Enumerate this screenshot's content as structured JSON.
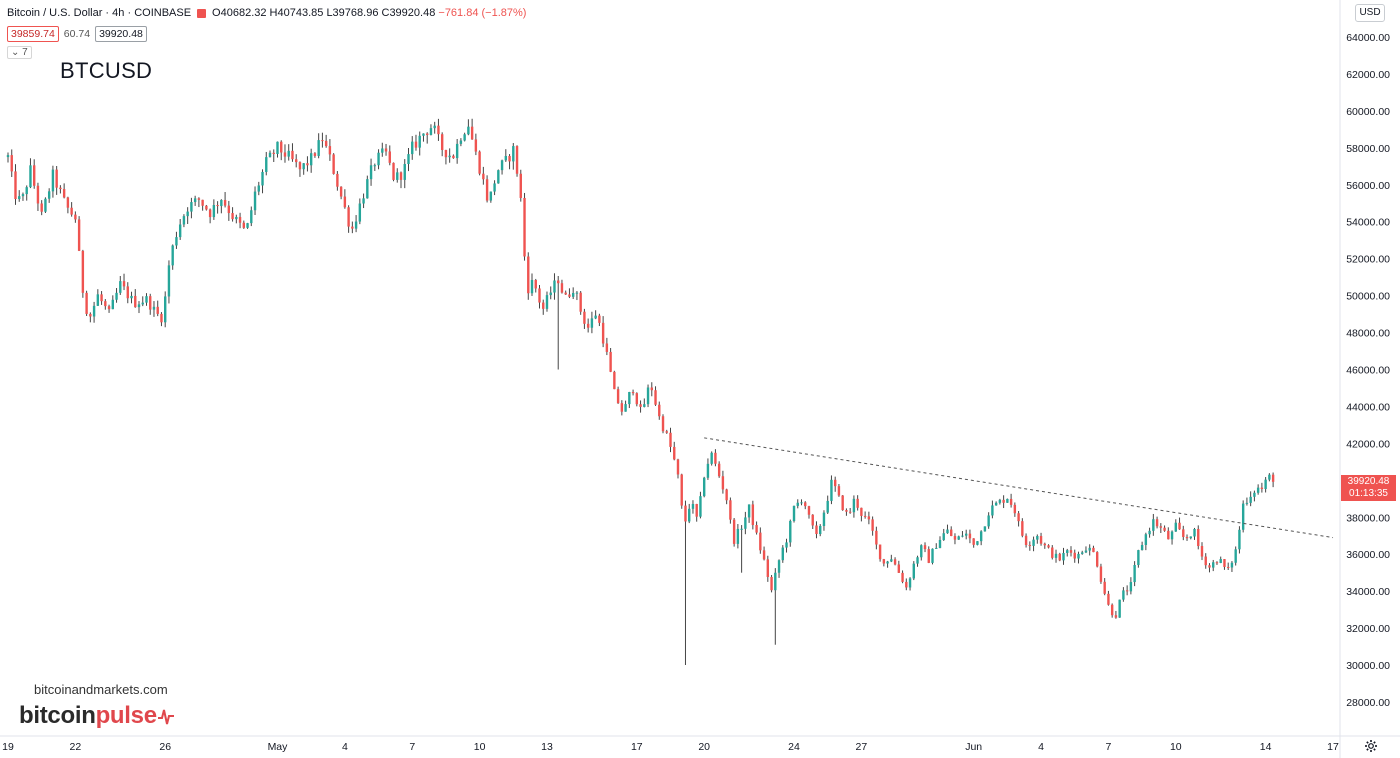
{
  "header": {
    "symbol": "Bitcoin / U.S. Dollar",
    "interval": "4h",
    "exchange": "COINBASE",
    "flag_color": "#ef5350",
    "open": "O40682.32",
    "high": "H40743.85",
    "low": "L39768.96",
    "close": "C39920.48",
    "change": "−761.84 (−1.87%)"
  },
  "quote": {
    "bid": "39859.74",
    "spread": "60.74",
    "ask": "39920.48",
    "indicators_toggle": "⌄ 7"
  },
  "watermark": "BTCUSD",
  "branding": {
    "site": "bitcoinandmarkets.com",
    "logo_part1": "bitcoin",
    "logo_part2": "pulse",
    "logo_icon": "pulse-icon"
  },
  "toolbar": {
    "currency": "USD",
    "settings_icon": "gear-icon"
  },
  "last_price": {
    "value": "39920.48",
    "countdown": "01:13:35",
    "color": "#ef5350"
  },
  "colors": {
    "up": "#26a69a",
    "down": "#ef5350",
    "wick": "#444444",
    "trendline": "#555555"
  },
  "chart_data": {
    "type": "candlestick",
    "title": "BTCUSD",
    "y_axis": {
      "min": 26500,
      "max": 65200,
      "ticks": [
        "28000.00",
        "30000.00",
        "32000.00",
        "34000.00",
        "36000.00",
        "38000.00",
        "40000.00",
        "42000.00",
        "44000.00",
        "46000.00",
        "48000.00",
        "50000.00",
        "52000.00",
        "54000.00",
        "56000.00",
        "58000.00",
        "60000.00",
        "62000.00",
        "64000.00"
      ],
      "position": "right"
    },
    "x_axis": {
      "first_day": 19,
      "last_day": 60.5,
      "ticks": [
        {
          "day": 19,
          "label": "19"
        },
        {
          "day": 22,
          "label": "22"
        },
        {
          "day": 26,
          "label": "26"
        },
        {
          "day": 31,
          "label": "May"
        },
        {
          "day": 34,
          "label": "4"
        },
        {
          "day": 37,
          "label": "7"
        },
        {
          "day": 40,
          "label": "10"
        },
        {
          "day": 43,
          "label": "13"
        },
        {
          "day": 47,
          "label": "17"
        },
        {
          "day": 50,
          "label": "20"
        },
        {
          "day": 54,
          "label": "24"
        },
        {
          "day": 57,
          "label": "27"
        },
        {
          "day": 62,
          "label": "Jun"
        },
        {
          "day": 65,
          "label": "4"
        },
        {
          "day": 68,
          "label": "7"
        },
        {
          "day": 71,
          "label": "10"
        },
        {
          "day": 75,
          "label": "14"
        },
        {
          "day": 78,
          "label": "17"
        }
      ]
    },
    "trendline": {
      "from": {
        "day": 50,
        "price": 42300
      },
      "to": {
        "day": 78,
        "price": 36900
      },
      "style": "dashed"
    },
    "grid": false,
    "anchors": [
      [
        19.0,
        57500
      ],
      [
        19.3,
        55500
      ],
      [
        19.6,
        55000
      ],
      [
        20.0,
        56800
      ],
      [
        20.5,
        54300
      ],
      [
        21.0,
        56500
      ],
      [
        21.6,
        54800
      ],
      [
        22.0,
        54200
      ],
      [
        22.3,
        50500
      ],
      [
        22.6,
        48700
      ],
      [
        23.0,
        50000
      ],
      [
        23.5,
        49000
      ],
      [
        24.0,
        50600
      ],
      [
        24.6,
        49600
      ],
      [
        25.2,
        49800
      ],
      [
        25.6,
        49000
      ],
      [
        25.9,
        48800
      ],
      [
        26.2,
        52000
      ],
      [
        26.6,
        53800
      ],
      [
        27.0,
        54800
      ],
      [
        27.5,
        55200
      ],
      [
        28.0,
        54500
      ],
      [
        28.5,
        55300
      ],
      [
        29.0,
        54300
      ],
      [
        29.6,
        53400
      ],
      [
        30.0,
        55500
      ],
      [
        30.5,
        57200
      ],
      [
        31.0,
        58000
      ],
      [
        31.5,
        57500
      ],
      [
        32.0,
        56800
      ],
      [
        32.5,
        57400
      ],
      [
        33.0,
        58500
      ],
      [
        33.4,
        57200
      ],
      [
        33.8,
        55500
      ],
      [
        34.3,
        53500
      ],
      [
        34.8,
        55400
      ],
      [
        35.3,
        57200
      ],
      [
        35.8,
        57800
      ],
      [
        36.2,
        56300
      ],
      [
        36.6,
        56700
      ],
      [
        37.0,
        58000
      ],
      [
        37.5,
        58800
      ],
      [
        37.9,
        59200
      ],
      [
        38.3,
        58000
      ],
      [
        38.8,
        57500
      ],
      [
        39.2,
        58800
      ],
      [
        39.5,
        59300
      ],
      [
        39.8,
        57800
      ],
      [
        40.1,
        56500
      ],
      [
        40.4,
        55000
      ],
      [
        40.8,
        56800
      ],
      [
        41.2,
        57300
      ],
      [
        41.5,
        57900
      ],
      [
        41.8,
        55800
      ],
      [
        42.1,
        50300
      ],
      [
        42.4,
        50800
      ],
      [
        42.8,
        49200
      ],
      [
        43.2,
        50300
      ],
      [
        43.5,
        50900
      ],
      [
        43.8,
        49800
      ],
      [
        44.2,
        50500
      ],
      [
        44.5,
        49200
      ],
      [
        44.8,
        48200
      ],
      [
        45.2,
        49100
      ],
      [
        45.6,
        47200
      ],
      [
        46.0,
        44700
      ],
      [
        46.4,
        43600
      ],
      [
        46.8,
        45100
      ],
      [
        47.2,
        43600
      ],
      [
        47.6,
        45300
      ],
      [
        48.0,
        43400
      ],
      [
        48.4,
        42200
      ],
      [
        48.8,
        40500
      ],
      [
        49.1,
        37500
      ],
      [
        49.4,
        38900
      ],
      [
        49.7,
        37800
      ],
      [
        50.0,
        40300
      ],
      [
        50.3,
        41500
      ],
      [
        50.6,
        40500
      ],
      [
        51.0,
        39000
      ],
      [
        51.3,
        36700
      ],
      [
        51.7,
        37600
      ],
      [
        52.0,
        38500
      ],
      [
        52.4,
        36700
      ],
      [
        52.7,
        35500
      ],
      [
        53.0,
        34000
      ],
      [
        53.4,
        36000
      ],
      [
        53.7,
        36900
      ],
      [
        54.0,
        38500
      ],
      [
        54.4,
        39100
      ],
      [
        54.7,
        37800
      ],
      [
        55.0,
        36900
      ],
      [
        55.4,
        38600
      ],
      [
        55.7,
        40000
      ],
      [
        56.0,
        39000
      ],
      [
        56.4,
        38000
      ],
      [
        56.7,
        39000
      ],
      [
        57.0,
        38200
      ],
      [
        57.4,
        37600
      ],
      [
        57.7,
        36300
      ],
      [
        58.0,
        35500
      ],
      [
        58.3,
        35900
      ],
      [
        58.6,
        35200
      ],
      [
        59.0,
        34200
      ],
      [
        59.4,
        35700
      ],
      [
        59.7,
        36400
      ],
      [
        60.0,
        35700
      ],
      [
        60.4,
        36700
      ],
      [
        60.8,
        37300
      ],
      [
        61.2,
        36700
      ],
      [
        61.6,
        37200
      ],
      [
        62.0,
        36500
      ],
      [
        62.4,
        37400
      ],
      [
        62.7,
        38400
      ],
      [
        63.0,
        38700
      ],
      [
        63.5,
        39100
      ],
      [
        63.8,
        38500
      ],
      [
        64.1,
        37200
      ],
      [
        64.4,
        36500
      ],
      [
        64.8,
        37100
      ],
      [
        65.1,
        36500
      ],
      [
        65.5,
        36000
      ],
      [
        65.8,
        35700
      ],
      [
        66.2,
        36200
      ],
      [
        66.6,
        35900
      ],
      [
        67.0,
        36400
      ],
      [
        67.4,
        36000
      ],
      [
        67.7,
        34500
      ],
      [
        68.0,
        33200
      ],
      [
        68.3,
        32600
      ],
      [
        68.6,
        33800
      ],
      [
        69.0,
        34300
      ],
      [
        69.3,
        36000
      ],
      [
        69.6,
        36900
      ],
      [
        70.0,
        37800
      ],
      [
        70.4,
        37300
      ],
      [
        70.7,
        36800
      ],
      [
        71.0,
        37500
      ],
      [
        71.4,
        36800
      ],
      [
        71.8,
        37300
      ],
      [
        72.1,
        36000
      ],
      [
        72.5,
        35300
      ],
      [
        72.9,
        35800
      ],
      [
        73.3,
        35000
      ],
      [
        73.7,
        36300
      ],
      [
        74.0,
        38700
      ],
      [
        74.3,
        39200
      ],
      [
        74.6,
        39600
      ],
      [
        74.9,
        39500
      ],
      [
        75.1,
        40300
      ],
      [
        75.3,
        39920
      ]
    ]
  }
}
